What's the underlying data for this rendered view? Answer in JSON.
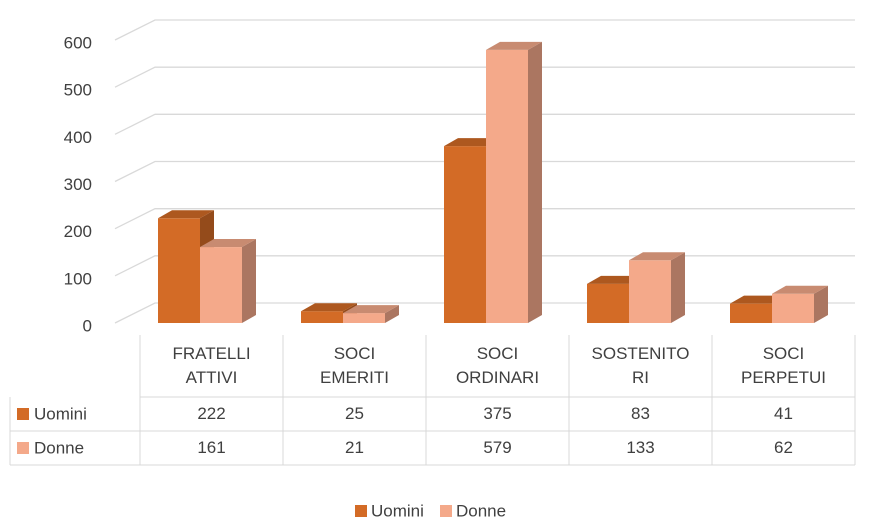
{
  "chart_data": {
    "type": "bar3d",
    "categories": [
      "FRATELLI ATTIVI",
      "SOCI EMERITI",
      "SOCI ORDINARI",
      "SOSTENITORI",
      "SOCI PERPETUI"
    ],
    "series": [
      {
        "name": "Uomini",
        "color": "#d36b26",
        "values": [
          222,
          25,
          375,
          83,
          41
        ]
      },
      {
        "name": "Donne",
        "color": "#f4a98a",
        "values": [
          161,
          21,
          579,
          133,
          62
        ]
      }
    ],
    "ylim": [
      0,
      600
    ],
    "yticks": [
      0,
      100,
      200,
      300,
      400,
      500,
      600
    ],
    "grid": true,
    "legend": "bottom",
    "data_table": true
  }
}
